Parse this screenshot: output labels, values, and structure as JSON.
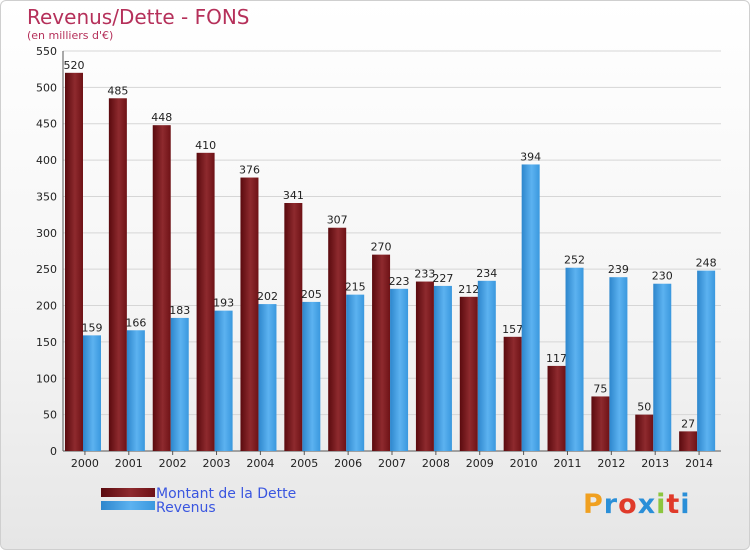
{
  "header": {
    "title": "Revenus/Dette - FONS",
    "subtitle": "(en milliers d'€)"
  },
  "logo": {
    "text": "Proxiti",
    "letters": [
      {
        "ch": "P",
        "color": "#f0a020"
      },
      {
        "ch": "r",
        "color": "#2a8fd8"
      },
      {
        "ch": "o",
        "color": "#e03a2a"
      },
      {
        "ch": "x",
        "color": "#2a8fd8"
      },
      {
        "ch": "i",
        "color": "#8cc63e"
      },
      {
        "ch": "t",
        "color": "#e03a2a"
      },
      {
        "ch": "i",
        "color": "#2a8fd8"
      }
    ]
  },
  "chart_data": {
    "type": "bar",
    "title": "Revenus/Dette - FONS",
    "subtitle": "(en milliers d'€)",
    "categories": [
      "2000",
      "2001",
      "2002",
      "2003",
      "2004",
      "2005",
      "2006",
      "2007",
      "2008",
      "2009",
      "2010",
      "2011",
      "2012",
      "2013",
      "2014"
    ],
    "series": [
      {
        "name": "Montant de la Dette",
        "color": "#7a1418",
        "values": [
          520,
          485,
          448,
          410,
          376,
          341,
          307,
          270,
          233,
          212,
          157,
          117,
          75,
          50,
          27
        ]
      },
      {
        "name": "Revenus",
        "color": "#3e9be0",
        "values": [
          159,
          166,
          183,
          193,
          202,
          205,
          215,
          223,
          227,
          234,
          394,
          252,
          239,
          230,
          248
        ]
      }
    ],
    "ylim": [
      0,
      550
    ],
    "yticks": [
      0,
      50,
      100,
      150,
      200,
      250,
      300,
      350,
      400,
      450,
      500,
      550
    ],
    "grid": true,
    "legend": "bottom-left"
  }
}
